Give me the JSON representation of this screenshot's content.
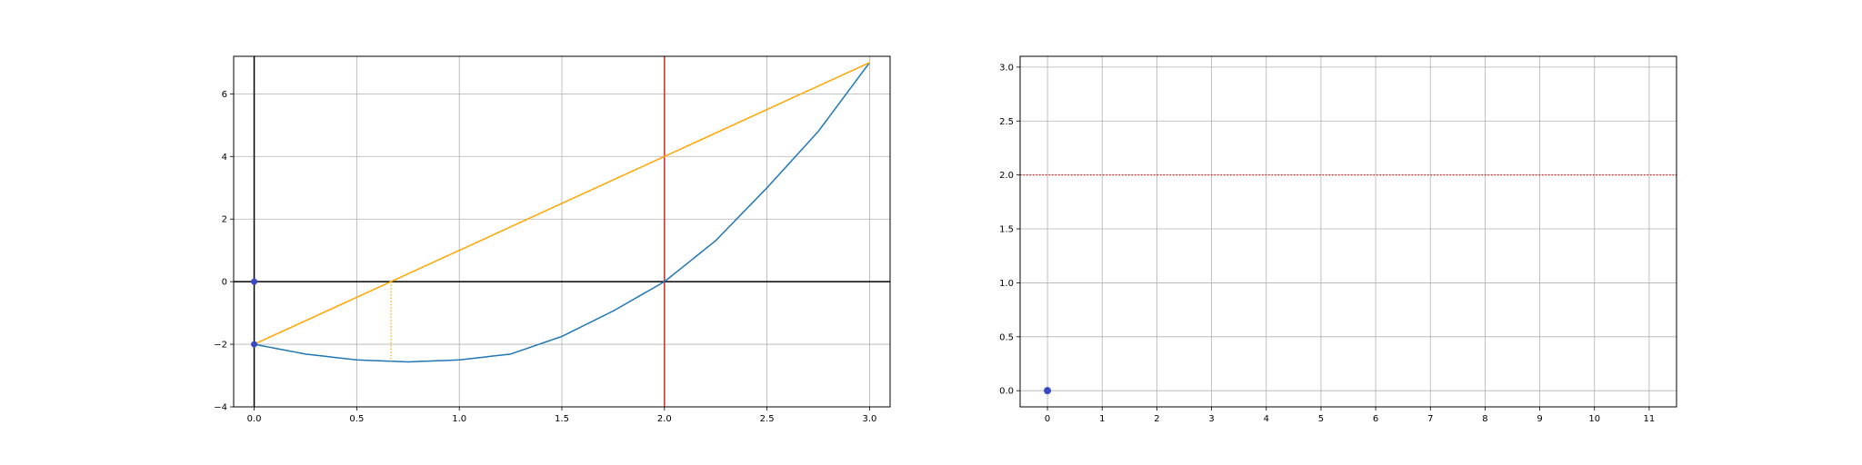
{
  "chart_data": [
    {
      "type": "line",
      "title": "",
      "xlabel": "",
      "ylabel": "",
      "xlim": [
        -0.1,
        3.1
      ],
      "ylim": [
        -4,
        7.2
      ],
      "grid": true,
      "x_ticks": [
        0.0,
        0.5,
        1.0,
        1.5,
        2.0,
        2.5,
        3.0
      ],
      "x_tick_labels": [
        "0.0",
        "0.5",
        "1.0",
        "1.5",
        "2.0",
        "2.5",
        "3.0"
      ],
      "y_ticks": [
        -4,
        -2,
        0,
        2,
        4,
        6
      ],
      "y_tick_labels": [
        "−4",
        "−2",
        "0",
        "2",
        "4",
        "6"
      ],
      "series": [
        {
          "kind": "curve",
          "color": "#1f77b4",
          "x": [
            0,
            0.25,
            0.5,
            0.75,
            1.0,
            1.25,
            1.5,
            1.75,
            2.0,
            2.25,
            2.5,
            2.75,
            3.0
          ],
          "y": [
            -2.0,
            -2.3125,
            -2.5,
            -2.5625,
            -2.5,
            -2.3125,
            -1.75,
            -0.9375,
            0.0,
            1.3125,
            3.0,
            4.8,
            7.0
          ]
        },
        {
          "kind": "tangent",
          "color": "#ffa500",
          "x": [
            0,
            3
          ],
          "y": [
            -2,
            7
          ]
        },
        {
          "kind": "drop",
          "color": "#ffa500",
          "style": "dotted",
          "x": [
            0.667,
            0.667
          ],
          "y": [
            0,
            -2.56
          ]
        }
      ],
      "reference_lines": {
        "vertical_red_x": 2.0,
        "vertical_red_color": "#d62728",
        "axis_y_x": 0,
        "axis_x_y": 0
      },
      "points": [
        {
          "x": 0,
          "y": 0,
          "color": "#3a48c4"
        },
        {
          "x": 0,
          "y": -2,
          "color": "#3a48c4"
        }
      ]
    },
    {
      "type": "scatter",
      "title": "",
      "xlabel": "",
      "ylabel": "",
      "xlim": [
        -0.5,
        11.5
      ],
      "ylim": [
        -0.15,
        3.1
      ],
      "grid": true,
      "x_ticks": [
        0,
        1,
        2,
        3,
        4,
        5,
        6,
        7,
        8,
        9,
        10,
        11
      ],
      "x_tick_labels": [
        "0",
        "1",
        "2",
        "3",
        "4",
        "5",
        "6",
        "7",
        "8",
        "9",
        "10",
        "11"
      ],
      "y_ticks": [
        0.0,
        0.5,
        1.0,
        1.5,
        2.0,
        2.5,
        3.0
      ],
      "y_tick_labels": [
        "0.0",
        "0.5",
        "1.0",
        "1.5",
        "2.0",
        "2.5",
        "3.0"
      ],
      "reference_lines": {
        "horizontal_red_y": 2.0,
        "horizontal_red_color": "#d62728",
        "style": "dotted"
      },
      "points": [
        {
          "x": 0,
          "y": 0,
          "color": "#3a48c4"
        }
      ]
    }
  ]
}
